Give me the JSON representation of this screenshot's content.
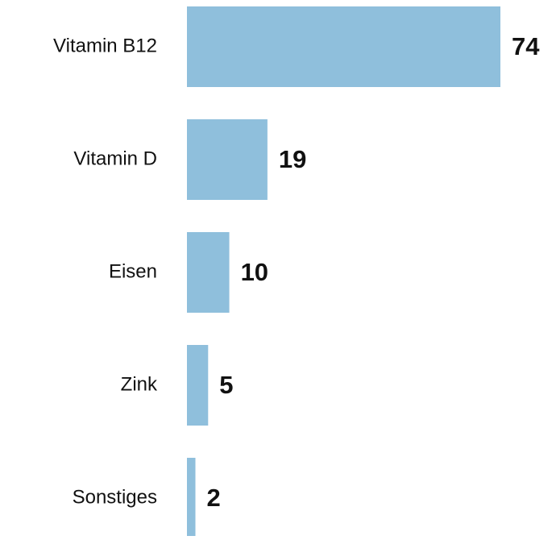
{
  "chart_data": {
    "type": "barh",
    "categories": [
      "Vitamin B12",
      "Vitamin D",
      "Eisen",
      "Zink",
      "Sonstiges"
    ],
    "values": [
      74,
      19,
      10,
      5,
      2
    ],
    "color": "#8fbfdc"
  }
}
